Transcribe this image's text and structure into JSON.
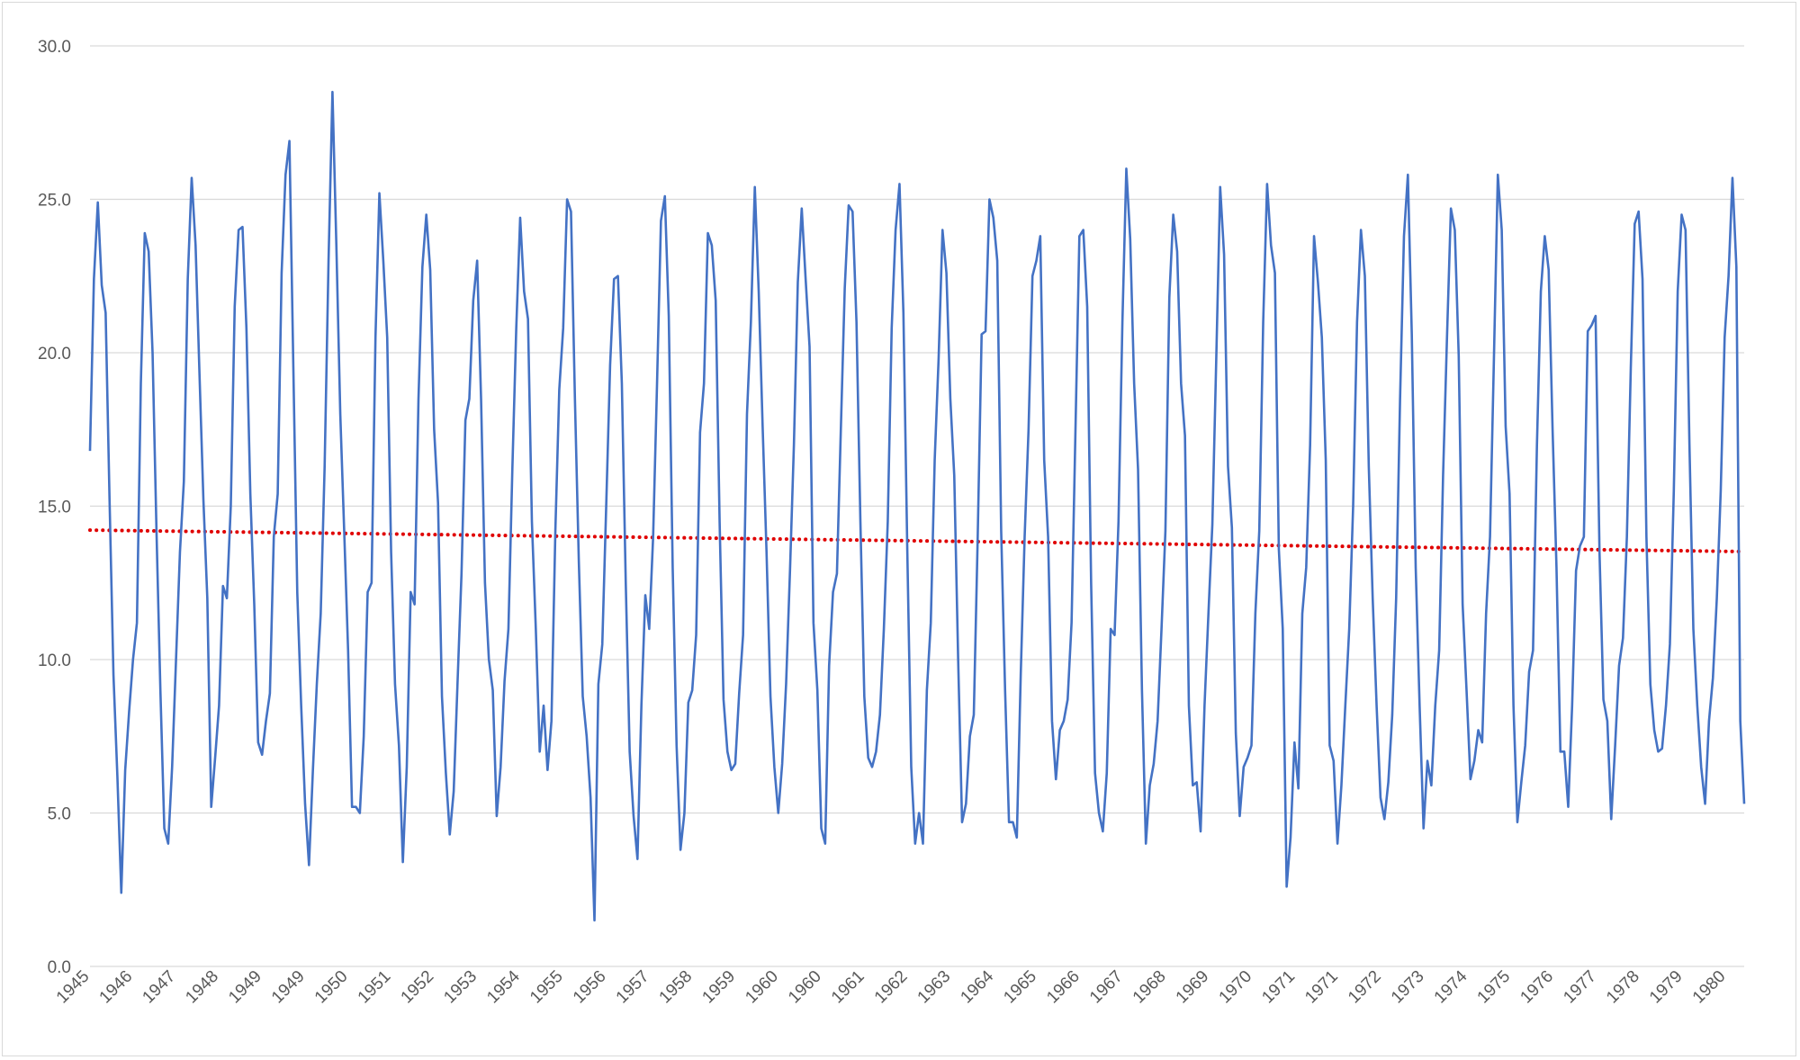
{
  "chart_data": {
    "type": "line",
    "title": "",
    "xlabel": "",
    "ylabel": "",
    "ylim": [
      0,
      30
    ],
    "y_ticks": [
      "0.0",
      "5.0",
      "10.0",
      "15.0",
      "20.0",
      "25.0",
      "30.0"
    ],
    "grid": true,
    "legend": "none",
    "x_tick_labels": [
      "1945",
      "1946",
      "1947",
      "1948",
      "1949",
      "1949",
      "1950",
      "1951",
      "1952",
      "1953",
      "1954",
      "1955",
      "1956",
      "1957",
      "1958",
      "1959",
      "1960",
      "1960",
      "1961",
      "1962",
      "1963",
      "1964",
      "1965",
      "1966",
      "1967",
      "1968",
      "1969",
      "1970",
      "1971",
      "1971",
      "1972",
      "1973",
      "1974",
      "1975",
      "1976",
      "1977",
      "1978",
      "1979",
      "1980"
    ],
    "series": [
      {
        "color": "#4472c4",
        "values": [
          16.8,
          22.4,
          24.9,
          22.2,
          21.3,
          15.2,
          9.5,
          6.2,
          2.4,
          6.4,
          8.3,
          10.0,
          11.2,
          19.0,
          23.9,
          23.3,
          20.0,
          14.2,
          9.0,
          4.5,
          4.0,
          6.5,
          10.0,
          13.5,
          15.8,
          22.4,
          25.7,
          23.5,
          19.3,
          15.2,
          12.0,
          5.2,
          6.8,
          8.5,
          12.4,
          12.0,
          15.0,
          21.5,
          24.0,
          24.1,
          20.8,
          15.4,
          11.8,
          7.3,
          6.9,
          8.0,
          8.9,
          14.0,
          15.4,
          22.6,
          25.8,
          26.9,
          19.5,
          12.2,
          8.5,
          5.3,
          3.3,
          6.4,
          9.2,
          11.5,
          16.3,
          23.0,
          28.5,
          23.5,
          18.0,
          14.2,
          10.3,
          5.2,
          5.2,
          5.0,
          7.5,
          12.2,
          12.5,
          20.5,
          25.2,
          23.0,
          20.5,
          13.5,
          9.2,
          7.2,
          3.4,
          6.5,
          12.2,
          11.8,
          18.5,
          22.8,
          24.5,
          22.7,
          17.5,
          15.1,
          8.8,
          6.3,
          4.3,
          5.7,
          9.3,
          12.8,
          17.8,
          18.5,
          21.7,
          23.0,
          18.5,
          12.5,
          10.0,
          9.0,
          4.9,
          6.5,
          9.3,
          11.0,
          16.2,
          20.8,
          24.4,
          22.0,
          21.1,
          14.5,
          11.0,
          7.0,
          8.5,
          6.4,
          8.0,
          14.2,
          18.8,
          20.8,
          25.0,
          24.6,
          18.5,
          13.2,
          8.8,
          7.5,
          5.5,
          1.5,
          9.2,
          10.5,
          15.0,
          19.6,
          22.4,
          22.5,
          19.0,
          12.5,
          7.0,
          4.9,
          3.5,
          8.5,
          12.1,
          11.0,
          14.0,
          19.0,
          24.3,
          25.1,
          21.2,
          13.0,
          7.2,
          3.8,
          5.0,
          8.6,
          9.0,
          10.8,
          17.4,
          19.0,
          23.9,
          23.5,
          21.7,
          14.5,
          8.7,
          7.0,
          6.4,
          6.6,
          8.9,
          10.8,
          18.0,
          21.0,
          25.4,
          22.0,
          17.6,
          13.5,
          8.8,
          6.5,
          5.0,
          6.6,
          9.2,
          12.9,
          17.0,
          22.3,
          24.7,
          22.4,
          20.2,
          11.2,
          9.0,
          4.5,
          4.0,
          9.8,
          12.2,
          12.8,
          17.5,
          22.1,
          24.8,
          24.6,
          21.0,
          14.5,
          8.8,
          6.8,
          6.5,
          7.0,
          8.2,
          11.0,
          14.5,
          20.8,
          24.0,
          25.5,
          21.3,
          13.5,
          6.5,
          4.0,
          5.0,
          4.0,
          9.0,
          11.2,
          16.5,
          19.8,
          24.0,
          22.6,
          18.5,
          16.0,
          10.0,
          4.7,
          5.3,
          7.5,
          8.2,
          14.0,
          20.6,
          20.7,
          25.0,
          24.4,
          23.0,
          14.2,
          9.0,
          4.7,
          4.7,
          4.2,
          9.5,
          14.0,
          17.5,
          22.5,
          23.0,
          23.8,
          16.5,
          14.0,
          8.0,
          6.1,
          7.7,
          8.0,
          8.7,
          11.2,
          17.5,
          23.8,
          24.0,
          21.5,
          12.5,
          6.3,
          5.0,
          4.4,
          6.3,
          11.0,
          10.8,
          14.5,
          21.0,
          26.0,
          23.7,
          19.0,
          16.2,
          9.0,
          4.0,
          5.9,
          6.6,
          8.0,
          11.0,
          14.2,
          21.8,
          24.5,
          23.3,
          19.0,
          17.3,
          8.5,
          5.9,
          6.0,
          4.4,
          8.5,
          11.5,
          14.4,
          19.8,
          25.4,
          23.2,
          16.3,
          14.3,
          7.6,
          4.9,
          6.5,
          6.8,
          7.2,
          11.5,
          14.2,
          21.0,
          25.5,
          23.5,
          22.6,
          13.6,
          11.0,
          2.6,
          4.2,
          7.3,
          5.8,
          11.5,
          13.0,
          17.0,
          23.8,
          22.3,
          20.5,
          16.5,
          7.2,
          6.7,
          4.0,
          5.9,
          8.5,
          11.0,
          15.0,
          21.0,
          24.0,
          22.5,
          16.3,
          12.0,
          8.5,
          5.5,
          4.8,
          6.0,
          8.2,
          12.0,
          18.5,
          23.8,
          25.8,
          20.6,
          13.0,
          8.5,
          4.5,
          6.7,
          5.9,
          8.5,
          10.3,
          16.0,
          20.5,
          24.7,
          24.0,
          19.9,
          11.8,
          9.0,
          6.1,
          6.7,
          7.7,
          7.3,
          11.5,
          14.0,
          19.8,
          25.8,
          24.0,
          17.6,
          15.4,
          8.5,
          4.7,
          6.0,
          7.2,
          9.6,
          10.3,
          17.0,
          22.0,
          23.8,
          22.7,
          17.5,
          13.0,
          7.0,
          7.0,
          5.2,
          8.5,
          12.9,
          13.7,
          14.0,
          20.7,
          20.9,
          21.2,
          13.5,
          8.7,
          8.0,
          4.8,
          7.2,
          9.8,
          10.7,
          14.0,
          19.5,
          24.2,
          24.6,
          22.4,
          14.0,
          9.2,
          7.7,
          7.0,
          7.1,
          8.5,
          10.5,
          15.5,
          22.0,
          24.5,
          24.0,
          17.0,
          11.0,
          8.5,
          6.5,
          5.3,
          8.0,
          9.4,
          12.0,
          15.5,
          20.5,
          22.5,
          25.7,
          22.8,
          8.0,
          5.3
        ]
      },
      {
        "type": "trendline",
        "style": "dotted",
        "color": "#e00000",
        "start": 14.22,
        "end": 13.52
      }
    ]
  }
}
